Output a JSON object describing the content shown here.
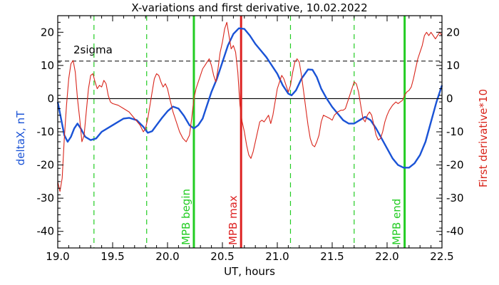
{
  "chart_data": {
    "type": "line",
    "title": "X-variations and first derivative, 10.02.2022",
    "xlabel": "UT, hours",
    "ylabel_left": "deltaX, nT",
    "ylabel_right": "First derivative*10",
    "xlim": [
      19.0,
      22.5
    ],
    "ylim": [
      -45,
      25
    ],
    "x_ticks": [
      "19.0",
      "19.5",
      "20.0",
      "20.5",
      "21.0",
      "21.5",
      "22.0",
      "22.5"
    ],
    "x_tick_values": [
      19.0,
      19.5,
      20.0,
      20.5,
      21.0,
      21.5,
      22.0,
      22.5
    ],
    "y_ticks": [
      "20",
      "10",
      "0",
      "-10",
      "-20",
      "-30",
      "-40"
    ],
    "y_tick_values": [
      20,
      10,
      0,
      -10,
      -20,
      -30,
      -40
    ],
    "grid": false,
    "zero_line": 0,
    "threshold": {
      "label": "2sigma",
      "value": 11.3
    },
    "series": [
      {
        "name": "deltaX, nT",
        "color": "#1a53d6",
        "points": [
          [
            19.0,
            -1
          ],
          [
            19.03,
            -6
          ],
          [
            19.06,
            -11
          ],
          [
            19.09,
            -13
          ],
          [
            19.12,
            -11.5
          ],
          [
            19.15,
            -9
          ],
          [
            19.18,
            -7.5
          ],
          [
            19.21,
            -9
          ],
          [
            19.25,
            -11.5
          ],
          [
            19.3,
            -12.5
          ],
          [
            19.35,
            -12
          ],
          [
            19.4,
            -10
          ],
          [
            19.5,
            -8
          ],
          [
            19.6,
            -6
          ],
          [
            19.65,
            -5.8
          ],
          [
            19.72,
            -6.5
          ],
          [
            19.78,
            -8.5
          ],
          [
            19.82,
            -10.3
          ],
          [
            19.86,
            -9.8
          ],
          [
            19.9,
            -8
          ],
          [
            19.95,
            -5.8
          ],
          [
            20.0,
            -3.8
          ],
          [
            20.05,
            -2.4
          ],
          [
            20.1,
            -3
          ],
          [
            20.15,
            -5.2
          ],
          [
            20.2,
            -8
          ],
          [
            20.24,
            -9
          ],
          [
            20.28,
            -8
          ],
          [
            20.32,
            -6
          ],
          [
            20.36,
            -2
          ],
          [
            20.4,
            2
          ],
          [
            20.45,
            6
          ],
          [
            20.5,
            11
          ],
          [
            20.55,
            16
          ],
          [
            20.6,
            19.5
          ],
          [
            20.65,
            21.2
          ],
          [
            20.7,
            21
          ],
          [
            20.75,
            19
          ],
          [
            20.8,
            16.5
          ],
          [
            20.85,
            14.5
          ],
          [
            20.9,
            12.5
          ],
          [
            20.95,
            10
          ],
          [
            21.0,
            7.5
          ],
          [
            21.05,
            4
          ],
          [
            21.1,
            1.5
          ],
          [
            21.13,
            1
          ],
          [
            21.17,
            2.5
          ],
          [
            21.22,
            6
          ],
          [
            21.28,
            8.8
          ],
          [
            21.32,
            8.7
          ],
          [
            21.36,
            6.5
          ],
          [
            21.4,
            3
          ],
          [
            21.45,
            0
          ],
          [
            21.5,
            -2.5
          ],
          [
            21.55,
            -4.5
          ],
          [
            21.6,
            -6.5
          ],
          [
            21.65,
            -7.5
          ],
          [
            21.7,
            -7.5
          ],
          [
            21.75,
            -6.5
          ],
          [
            21.8,
            -5.5
          ],
          [
            21.85,
            -6.5
          ],
          [
            21.9,
            -9
          ],
          [
            21.95,
            -12
          ],
          [
            22.0,
            -15
          ],
          [
            22.05,
            -18
          ],
          [
            22.1,
            -20
          ],
          [
            22.15,
            -20.8
          ],
          [
            22.2,
            -20.8
          ],
          [
            22.25,
            -19.5
          ],
          [
            22.3,
            -17
          ],
          [
            22.35,
            -13
          ],
          [
            22.4,
            -7
          ],
          [
            22.45,
            -1
          ],
          [
            22.5,
            4
          ]
        ]
      },
      {
        "name": "First derivative*10",
        "color": "#d9261c",
        "points": [
          [
            19.0,
            -25
          ],
          [
            19.02,
            -28
          ],
          [
            19.04,
            -24
          ],
          [
            19.06,
            -12
          ],
          [
            19.08,
            -2
          ],
          [
            19.1,
            6
          ],
          [
            19.12,
            10.5
          ],
          [
            19.14,
            11.5
          ],
          [
            19.16,
            8
          ],
          [
            19.18,
            0
          ],
          [
            19.2,
            -6
          ],
          [
            19.22,
            -13
          ],
          [
            19.24,
            -11
          ],
          [
            19.26,
            -4
          ],
          [
            19.28,
            3
          ],
          [
            19.3,
            7
          ],
          [
            19.32,
            7.5
          ],
          [
            19.34,
            5
          ],
          [
            19.36,
            3
          ],
          [
            19.38,
            4
          ],
          [
            19.4,
            3.5
          ],
          [
            19.42,
            5.5
          ],
          [
            19.44,
            4.5
          ],
          [
            19.46,
            1
          ],
          [
            19.48,
            -1
          ],
          [
            19.5,
            -1.5
          ],
          [
            19.55,
            -2
          ],
          [
            19.6,
            -3
          ],
          [
            19.65,
            -4
          ],
          [
            19.7,
            -6
          ],
          [
            19.75,
            -8
          ],
          [
            19.78,
            -10
          ],
          [
            19.8,
            -9
          ],
          [
            19.82,
            -6
          ],
          [
            19.84,
            -2
          ],
          [
            19.86,
            2
          ],
          [
            19.88,
            6
          ],
          [
            19.9,
            7.5
          ],
          [
            19.92,
            7
          ],
          [
            19.94,
            5
          ],
          [
            19.96,
            3.5
          ],
          [
            19.98,
            4.5
          ],
          [
            20.0,
            3
          ],
          [
            20.02,
            0
          ],
          [
            20.05,
            -4
          ],
          [
            20.08,
            -7
          ],
          [
            20.11,
            -10
          ],
          [
            20.14,
            -12
          ],
          [
            20.17,
            -13
          ],
          [
            20.2,
            -11
          ],
          [
            20.22,
            -6
          ],
          [
            20.24,
            0
          ],
          [
            20.26,
            3
          ],
          [
            20.28,
            5
          ],
          [
            20.3,
            7
          ],
          [
            20.32,
            9
          ],
          [
            20.34,
            10
          ],
          [
            20.36,
            11
          ],
          [
            20.38,
            12
          ],
          [
            20.4,
            10
          ],
          [
            20.42,
            7
          ],
          [
            20.44,
            5
          ],
          [
            20.46,
            9
          ],
          [
            20.48,
            14
          ],
          [
            20.5,
            17
          ],
          [
            20.52,
            21
          ],
          [
            20.54,
            23
          ],
          [
            20.56,
            19
          ],
          [
            20.58,
            15
          ],
          [
            20.6,
            16
          ],
          [
            20.62,
            14
          ],
          [
            20.64,
            8
          ],
          [
            20.66,
            -2
          ],
          [
            20.68,
            -7
          ],
          [
            20.7,
            -10
          ],
          [
            20.72,
            -14
          ],
          [
            20.74,
            -17
          ],
          [
            20.76,
            -18
          ],
          [
            20.78,
            -16
          ],
          [
            20.8,
            -13
          ],
          [
            20.82,
            -10
          ],
          [
            20.84,
            -7
          ],
          [
            20.86,
            -6.5
          ],
          [
            20.88,
            -7
          ],
          [
            20.9,
            -6
          ],
          [
            20.92,
            -5
          ],
          [
            20.94,
            -7.5
          ],
          [
            20.96,
            -5
          ],
          [
            20.98,
            -1
          ],
          [
            21.0,
            3
          ],
          [
            21.02,
            5
          ],
          [
            21.04,
            7
          ],
          [
            21.06,
            6
          ],
          [
            21.08,
            4
          ],
          [
            21.1,
            2
          ],
          [
            21.12,
            4
          ],
          [
            21.14,
            8
          ],
          [
            21.16,
            11
          ],
          [
            21.18,
            12
          ],
          [
            21.2,
            11
          ],
          [
            21.22,
            7
          ],
          [
            21.24,
            2
          ],
          [
            21.26,
            -3
          ],
          [
            21.28,
            -8
          ],
          [
            21.3,
            -12
          ],
          [
            21.32,
            -14
          ],
          [
            21.34,
            -14.5
          ],
          [
            21.36,
            -13
          ],
          [
            21.38,
            -11
          ],
          [
            21.4,
            -7
          ],
          [
            21.42,
            -5
          ],
          [
            21.45,
            -5.5
          ],
          [
            21.48,
            -6
          ],
          [
            21.5,
            -6.5
          ],
          [
            21.52,
            -5
          ],
          [
            21.55,
            -4
          ],
          [
            21.58,
            -3.5
          ],
          [
            21.6,
            -3.5
          ],
          [
            21.62,
            -3
          ],
          [
            21.65,
            0
          ],
          [
            21.68,
            3
          ],
          [
            21.7,
            5
          ],
          [
            21.72,
            4.5
          ],
          [
            21.74,
            2
          ],
          [
            21.76,
            -2
          ],
          [
            21.78,
            -6
          ],
          [
            21.8,
            -7
          ],
          [
            21.82,
            -5
          ],
          [
            21.84,
            -4
          ],
          [
            21.86,
            -5
          ],
          [
            21.88,
            -8
          ],
          [
            21.9,
            -11
          ],
          [
            21.92,
            -12.5
          ],
          [
            21.94,
            -12
          ],
          [
            21.96,
            -10
          ],
          [
            21.98,
            -7
          ],
          [
            22.0,
            -5
          ],
          [
            22.02,
            -3.5
          ],
          [
            22.05,
            -2
          ],
          [
            22.08,
            -1
          ],
          [
            22.1,
            -1.5
          ],
          [
            22.12,
            -1
          ],
          [
            22.14,
            -0.5
          ],
          [
            22.16,
            1
          ],
          [
            22.18,
            2
          ],
          [
            22.2,
            2.5
          ],
          [
            22.22,
            3.5
          ],
          [
            22.24,
            6
          ],
          [
            22.26,
            9
          ],
          [
            22.28,
            12
          ],
          [
            22.3,
            14
          ],
          [
            22.32,
            16
          ],
          [
            22.34,
            19
          ],
          [
            22.36,
            20
          ],
          [
            22.38,
            19
          ],
          [
            22.4,
            20
          ],
          [
            22.42,
            19
          ],
          [
            22.44,
            18
          ],
          [
            22.46,
            19
          ],
          [
            22.48,
            20
          ],
          [
            22.5,
            19
          ]
        ]
      }
    ],
    "vertical_lines": [
      {
        "x": 19.33,
        "color": "#22cc22",
        "style": "dashed",
        "label": ""
      },
      {
        "x": 19.81,
        "color": "#22cc22",
        "style": "dashed",
        "label": ""
      },
      {
        "x": 20.24,
        "color": "#22cc22",
        "style": "solid",
        "label": "MPB begin"
      },
      {
        "x": 20.67,
        "color": "#dd2222",
        "style": "solid",
        "label": "MPB max"
      },
      {
        "x": 21.12,
        "color": "#22cc22",
        "style": "dashed",
        "label": ""
      },
      {
        "x": 21.7,
        "color": "#22cc22",
        "style": "dashed",
        "label": ""
      },
      {
        "x": 22.16,
        "color": "#22cc22",
        "style": "solid",
        "label": "MPB end"
      }
    ]
  }
}
